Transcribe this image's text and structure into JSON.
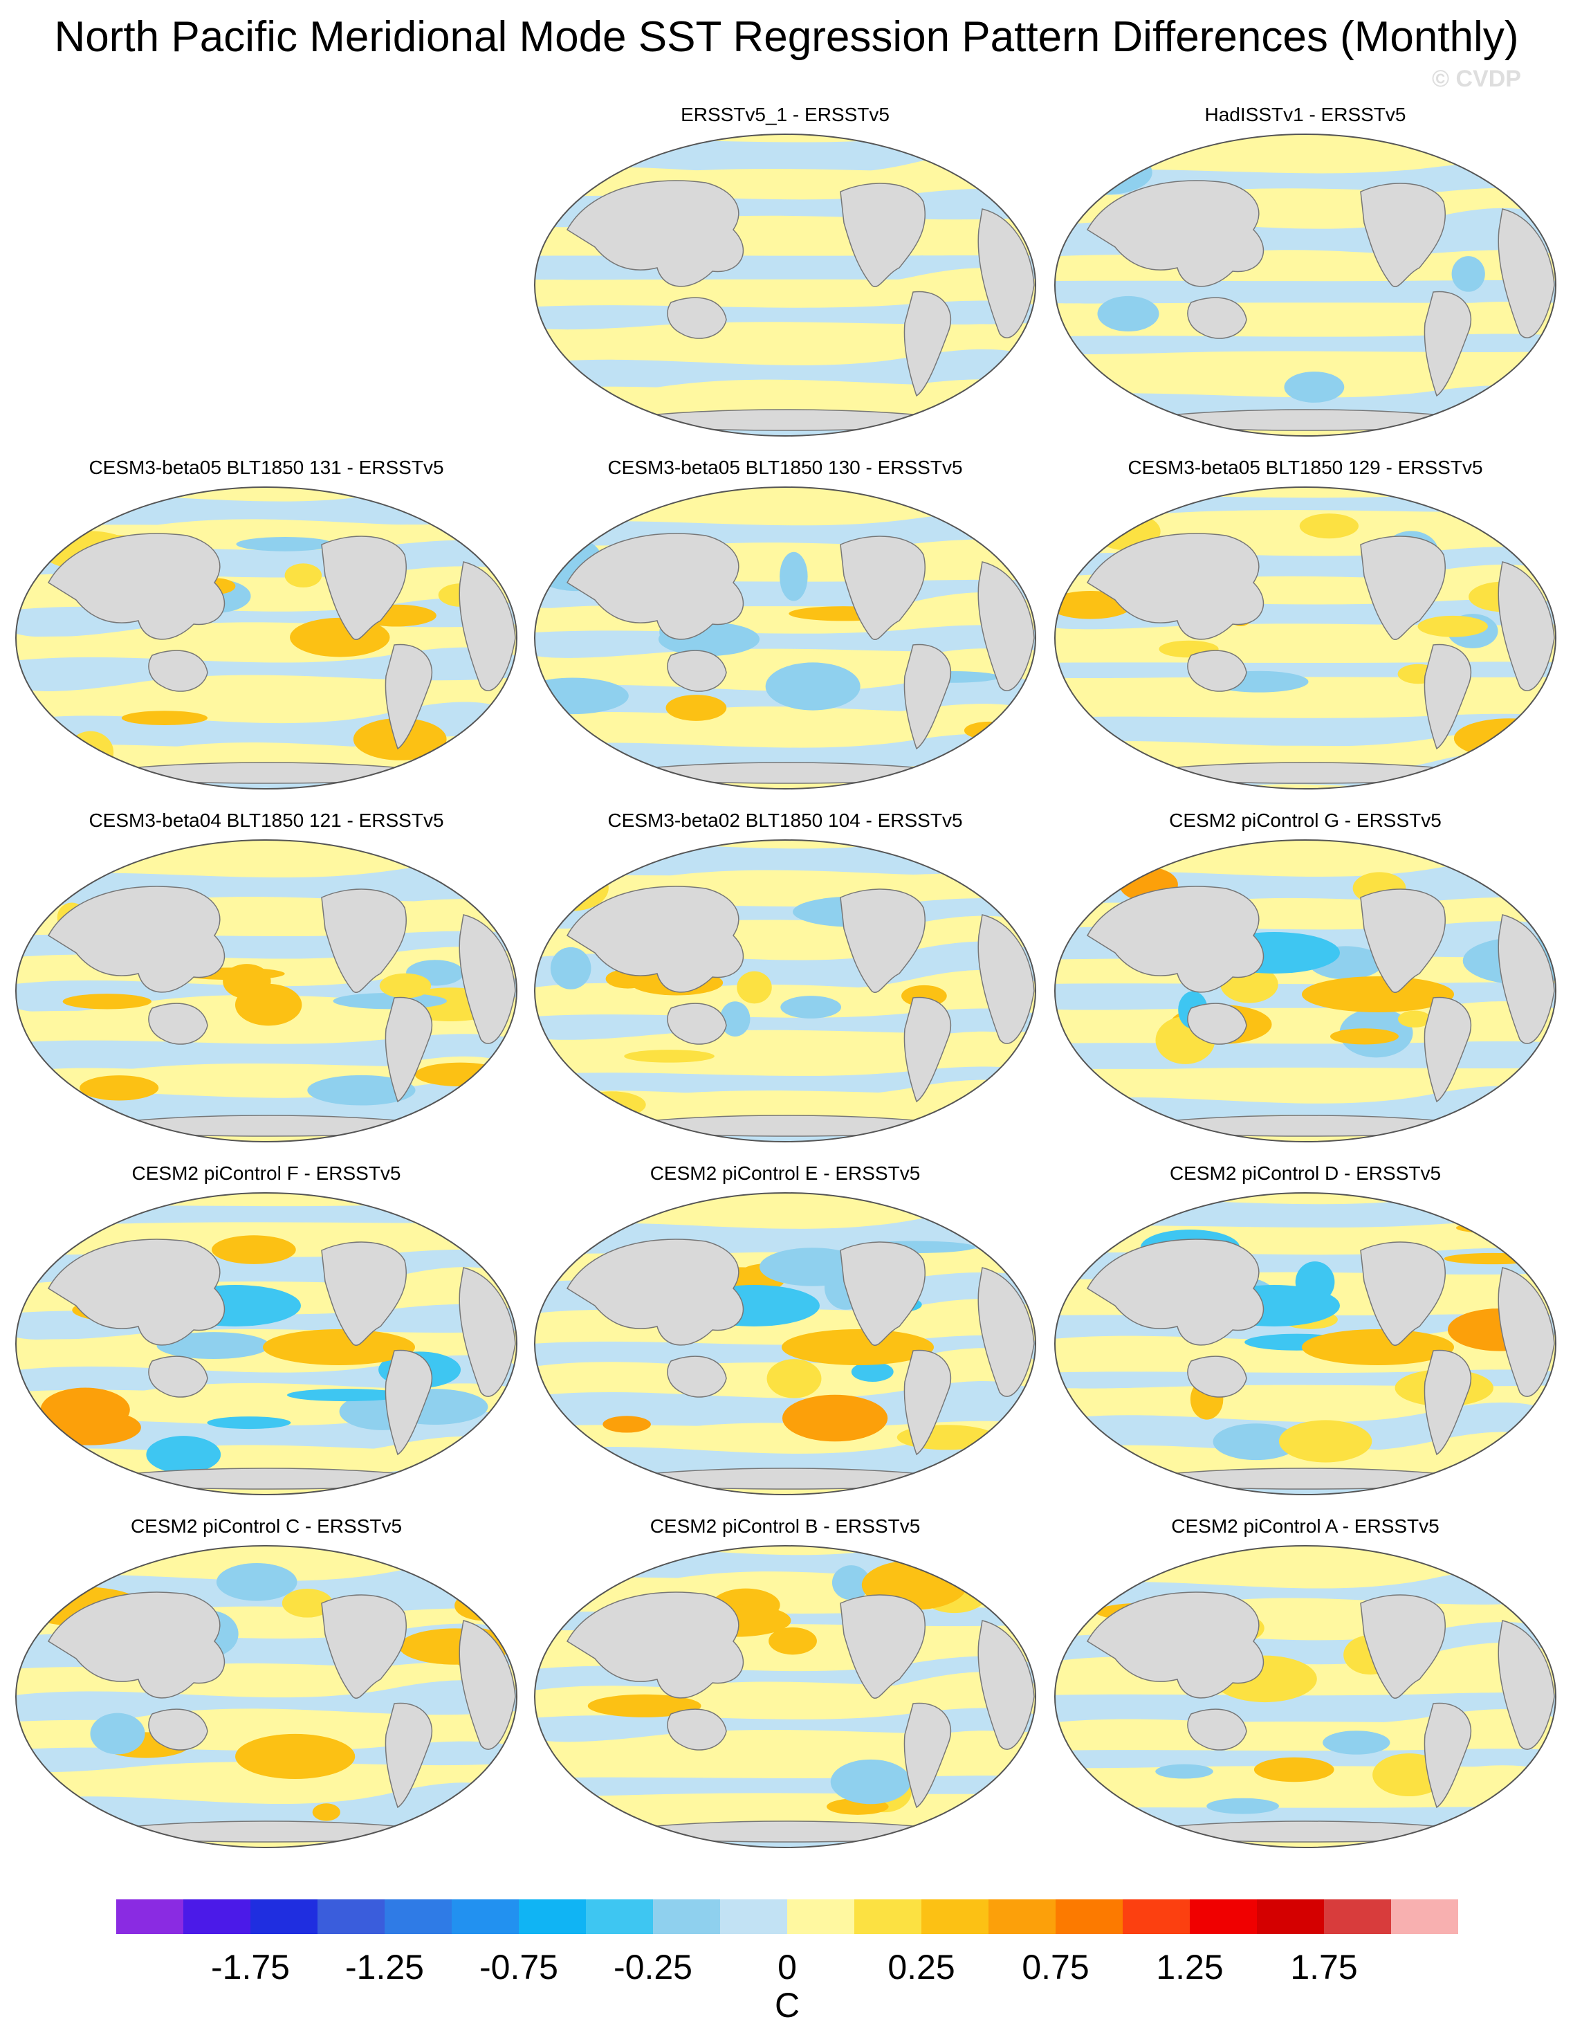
{
  "title": "North Pacific Meridional Mode SST Regression Pattern Differences (Monthly)",
  "watermark": "© CVDP",
  "colors": {
    "land": "#d9d9d9",
    "coast": "#777777",
    "near_zero_pos": "#fff8a0",
    "near_zero_neg": "#bfe1f4"
  },
  "panels": [
    {
      "title": "ERSSTv5_1 - ERSSTv5",
      "style": "weak"
    },
    {
      "title": "HadISSTv1 - ERSSTv5",
      "style": "mixed"
    },
    {
      "title": "CESM3-beta05 BLT1850 131 - ERSSTv5",
      "style": "model"
    },
    {
      "title": "CESM3-beta05 BLT1850 130 - ERSSTv5",
      "style": "model"
    },
    {
      "title": "CESM3-beta05 BLT1850 129 - ERSSTv5",
      "style": "model"
    },
    {
      "title": "CESM3-beta04 BLT1850 121 - ERSSTv5",
      "style": "model"
    },
    {
      "title": "CESM3-beta02 BLT1850 104 - ERSSTv5",
      "style": "model"
    },
    {
      "title": "CESM2 piControl G - ERSSTv5",
      "style": "strong"
    },
    {
      "title": "CESM2 piControl F - ERSSTv5",
      "style": "strong"
    },
    {
      "title": "CESM2 piControl E - ERSSTv5",
      "style": "strong"
    },
    {
      "title": "CESM2 piControl D - ERSSTv5",
      "style": "strong"
    },
    {
      "title": "CESM2 piControl C - ERSSTv5",
      "style": "model"
    },
    {
      "title": "CESM2 piControl B - ERSSTv5",
      "style": "model"
    },
    {
      "title": "CESM2 piControl A - ERSSTv5",
      "style": "model"
    }
  ],
  "colorbar": {
    "colors": [
      "#8a2be2",
      "#4b1ae8",
      "#1f2ee0",
      "#3a5ddc",
      "#2f7be6",
      "#2291f0",
      "#10b4f4",
      "#3ec6f2",
      "#8fd0ee",
      "#c2e2f4",
      "#fff8a0",
      "#fce142",
      "#fcc114",
      "#fca00a",
      "#fc7a00",
      "#fc4010",
      "#f00000",
      "#d40000",
      "#d83c3c",
      "#f8b0b0"
    ],
    "tick_labels": [
      "-1.75",
      "-1.25",
      "-0.75",
      "-0.25",
      "0",
      "0.25",
      "0.75",
      "1.25",
      "1.75"
    ],
    "tick_boundaries": [
      1,
      3,
      5,
      7,
      9,
      11,
      13,
      15,
      17
    ],
    "unit": "C"
  }
}
